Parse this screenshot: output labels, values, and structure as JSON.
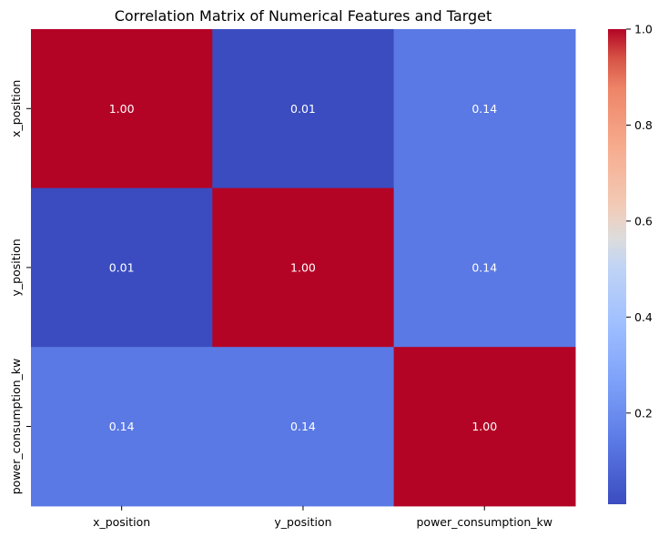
{
  "chart_data": {
    "type": "heatmap",
    "title": "Correlation Matrix of Numerical Features and Target",
    "x_categories": [
      "x_position",
      "y_position",
      "power_consumption_kw"
    ],
    "y_categories": [
      "x_position",
      "y_position",
      "power_consumption_kw"
    ],
    "values": [
      [
        1.0,
        0.01,
        0.14
      ],
      [
        0.01,
        1.0,
        0.14
      ],
      [
        0.14,
        0.14,
        1.0
      ]
    ],
    "cell_labels": [
      [
        "1.00",
        "0.01",
        "0.14"
      ],
      [
        "0.01",
        "1.00",
        "0.14"
      ],
      [
        "0.14",
        "0.14",
        "1.00"
      ]
    ],
    "colormap": "coolwarm",
    "colorbar": {
      "vmin": 0.01,
      "vmax": 1.0,
      "ticks": [
        0.2,
        0.4,
        0.6,
        0.8,
        1.0
      ],
      "tick_labels": [
        "0.2",
        "0.4",
        "0.6",
        "0.8",
        "1.0"
      ]
    }
  }
}
